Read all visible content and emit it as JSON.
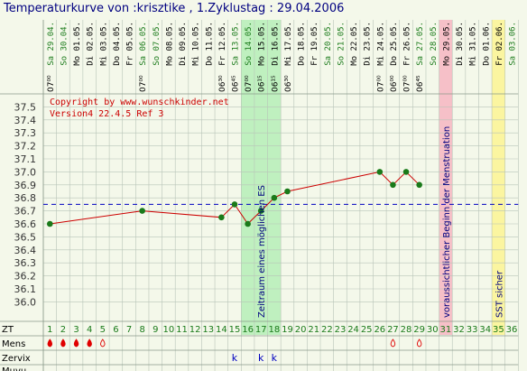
{
  "title": "Temperaturkurve von :krisztike , 1.Zyklustag : 29.04.2006",
  "chart_data": {
    "type": "line",
    "title": "Temperaturkurve von :krisztike , 1.Zyklustag : 29.04.2006",
    "ylim": [
      35.85,
      37.6
    ],
    "yticks": [
      "37.5",
      "37.4",
      "37.3",
      "37.2",
      "37.1",
      "37.0",
      "36.9",
      "36.8",
      "36.7",
      "36.6",
      "36.5",
      "36.4",
      "36.3",
      "36.2",
      "36.1",
      "36.0"
    ],
    "coverline": 36.75,
    "dates": [
      "Sa 29.04.",
      "So 30.04.",
      "Mo 01.05.",
      "Di 02.05.",
      "Mi 03.05.",
      "Do 04.05.",
      "Fr 05.05.",
      "Sa 06.05.",
      "So 07.05.",
      "Mo 08.05.",
      "Di 09.05.",
      "Mi 10.05.",
      "Do 11.05.",
      "Fr 12.05.",
      "Sa 13.05.",
      "So 14.05.",
      "Mo 15.05.",
      "Di 16.05.",
      "Mi 17.05.",
      "Do 18.05.",
      "Fr 19.05.",
      "Sa 20.05.",
      "So 21.05.",
      "Mo 22.05.",
      "Di 23.05.",
      "Mi 24.05.",
      "Do 25.05.",
      "Fr 26.05.",
      "Sa 27.05.",
      "So 28.05.",
      "Mo 29.05.",
      "Di 30.05.",
      "Mi 31.05.",
      "Do 01.06.",
      "Fr 02.06.",
      "Sa 03.06."
    ],
    "times": {
      "1": "07⁰⁰",
      "8": "07⁰⁰",
      "14": "06³⁰",
      "15": "06⁴⁵",
      "16": "07⁰⁰",
      "17": "06¹⁵",
      "18": "06¹⁵",
      "19": "06³⁰",
      "26": "07⁰⁰",
      "27": "06⁰⁰",
      "28": "07⁰⁰",
      "29": "06⁴⁵"
    },
    "series": [
      {
        "x": [
          1,
          8,
          14,
          15,
          16,
          17,
          18,
          19,
          26,
          27,
          28,
          29
        ],
        "y": [
          36.6,
          36.7,
          36.65,
          36.75,
          36.6,
          36.7,
          36.8,
          36.85,
          37.0,
          36.9,
          37.0,
          36.9
        ],
        "color": "#cc0000",
        "marker_color": "#1a7a1a"
      }
    ],
    "highlight_bands": [
      {
        "from": 16,
        "to": 18,
        "color": "#bff0bf",
        "label": "Zeitraum eines möglichen ES"
      },
      {
        "from": 31,
        "to": 31,
        "color": "#f6c0c8",
        "label": "voraussichtlicher Beginn der Menstruation"
      },
      {
        "from": 35,
        "to": 35,
        "color": "#fbf5a0",
        "label": "SST sicher"
      }
    ],
    "annotations": [
      "Copyright by www.wunschkinder.net",
      "Version4 22.4.5 Ref 3"
    ],
    "rows": {
      "zt_label": "ZT",
      "mens_label": "Mens",
      "zervix_label": "Zervix",
      "muvu_label": "Muvu",
      "mens_filled": [
        1,
        2,
        3,
        4
      ],
      "mens_outline": [
        5,
        27,
        29
      ],
      "zervix": {
        "15": "k",
        "17": "k",
        "18": "k"
      }
    },
    "x_range": [
      1,
      36
    ]
  },
  "colors": {
    "background": "#f4f8ea",
    "grid": "#b8c4b8",
    "accent": "#000080",
    "red": "#cc0000",
    "green": "#1a7a1a"
  }
}
